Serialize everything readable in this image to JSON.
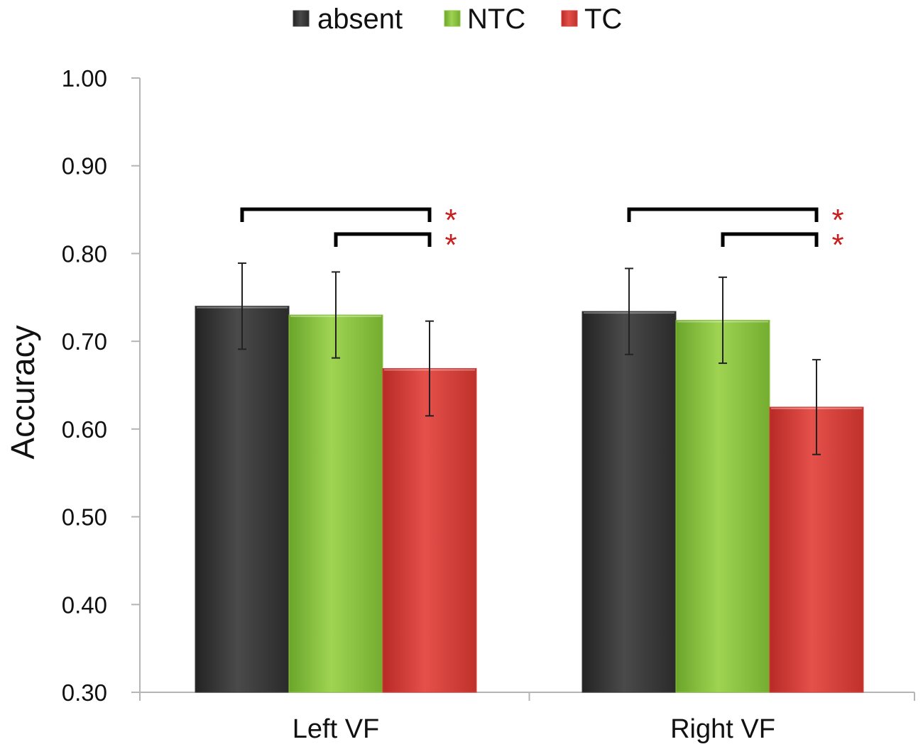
{
  "chart_data": {
    "type": "bar",
    "title": "",
    "xlabel": "",
    "ylabel": "Accuracy",
    "ylim": [
      0.3,
      1.0
    ],
    "yticks": [
      "0.30",
      "0.40",
      "0.50",
      "0.60",
      "0.70",
      "0.80",
      "0.90",
      "1.00"
    ],
    "ytick_values": [
      0.3,
      0.4,
      0.5,
      0.6,
      0.7,
      0.8,
      0.9,
      1.0
    ],
    "categories": [
      "Left VF",
      "Right VF"
    ],
    "grid": false,
    "legend_position": "top-center",
    "series": [
      {
        "name": "absent",
        "color": "#3a3a3a",
        "values": [
          0.74,
          0.734
        ],
        "errors": [
          0.049,
          0.049
        ]
      },
      {
        "name": "NTC",
        "color": "#8cc63f",
        "values": [
          0.73,
          0.724
        ],
        "errors": [
          0.049,
          0.049
        ]
      },
      {
        "name": "TC",
        "color": "#d9403c",
        "values": [
          0.669,
          0.625
        ],
        "errors": [
          0.054,
          0.054
        ]
      }
    ],
    "significance": [
      {
        "category": 0,
        "from_series": 0,
        "to_series": 2,
        "label": "*"
      },
      {
        "category": 0,
        "from_series": 1,
        "to_series": 2,
        "label": "*"
      },
      {
        "category": 1,
        "from_series": 0,
        "to_series": 2,
        "label": "*"
      },
      {
        "category": 1,
        "from_series": 1,
        "to_series": 2,
        "label": "*"
      }
    ],
    "significance_color": "#c8201e"
  }
}
